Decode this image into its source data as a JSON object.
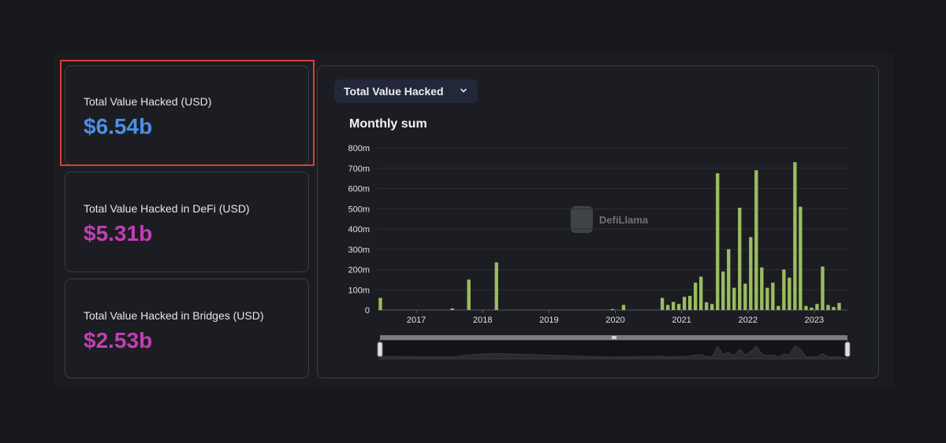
{
  "cards": [
    {
      "label": "Total Value Hacked (USD)",
      "value": "$6.54b",
      "color": "#4b8fe6"
    },
    {
      "label": "Total Value Hacked in DeFi (USD)",
      "value": "$5.31b",
      "color": "#c13fb4"
    },
    {
      "label": "Total Value Hacked in Bridges (USD)",
      "value": "$2.53b",
      "color": "#c13fb4"
    }
  ],
  "dropdown": {
    "label": "Total Value Hacked"
  },
  "watermark": {
    "text": "DefiLlama"
  },
  "chart_data": {
    "type": "bar",
    "title": "Monthly sum",
    "xlabel": "",
    "ylabel": "",
    "ylim": [
      0,
      800
    ],
    "y_ticks": [
      "0",
      "100m",
      "200m",
      "300m",
      "400m",
      "500m",
      "600m",
      "700m",
      "800m"
    ],
    "x_ticks": [
      "2017",
      "2018",
      "2019",
      "2020",
      "2021",
      "2022",
      "2023"
    ],
    "x_range": [
      "2016-06",
      "2023-06"
    ],
    "grid": true,
    "legend": "none",
    "bar_color": "#9bbd5f",
    "series": [
      {
        "points": [
          {
            "x": "2016-06",
            "y": 60
          },
          {
            "x": "2017-07",
            "y": 8
          },
          {
            "x": "2017-10",
            "y": 150
          },
          {
            "x": "2018-03",
            "y": 235
          },
          {
            "x": "2019-12",
            "y": 5
          },
          {
            "x": "2020-02",
            "y": 25
          },
          {
            "x": "2020-09",
            "y": 60
          },
          {
            "x": "2020-10",
            "y": 25
          },
          {
            "x": "2020-11",
            "y": 40
          },
          {
            "x": "2020-12",
            "y": 30
          },
          {
            "x": "2021-01",
            "y": 65
          },
          {
            "x": "2021-02",
            "y": 70
          },
          {
            "x": "2021-03",
            "y": 135
          },
          {
            "x": "2021-04",
            "y": 165
          },
          {
            "x": "2021-05",
            "y": 38
          },
          {
            "x": "2021-06",
            "y": 30
          },
          {
            "x": "2021-07",
            "y": 675
          },
          {
            "x": "2021-08",
            "y": 190
          },
          {
            "x": "2021-09",
            "y": 300
          },
          {
            "x": "2021-10",
            "y": 110
          },
          {
            "x": "2021-11",
            "y": 505
          },
          {
            "x": "2021-12",
            "y": 130
          },
          {
            "x": "2022-01",
            "y": 360
          },
          {
            "x": "2022-02",
            "y": 690
          },
          {
            "x": "2022-03",
            "y": 210
          },
          {
            "x": "2022-04",
            "y": 110
          },
          {
            "x": "2022-05",
            "y": 135
          },
          {
            "x": "2022-06",
            "y": 20
          },
          {
            "x": "2022-07",
            "y": 200
          },
          {
            "x": "2022-08",
            "y": 160
          },
          {
            "x": "2022-09",
            "y": 730
          },
          {
            "x": "2022-10",
            "y": 510
          },
          {
            "x": "2022-11",
            "y": 20
          },
          {
            "x": "2022-12",
            "y": 12
          },
          {
            "x": "2023-01",
            "y": 30
          },
          {
            "x": "2023-02",
            "y": 215
          },
          {
            "x": "2023-03",
            "y": 25
          },
          {
            "x": "2023-04",
            "y": 15
          },
          {
            "x": "2023-05",
            "y": 35
          }
        ]
      }
    ]
  }
}
